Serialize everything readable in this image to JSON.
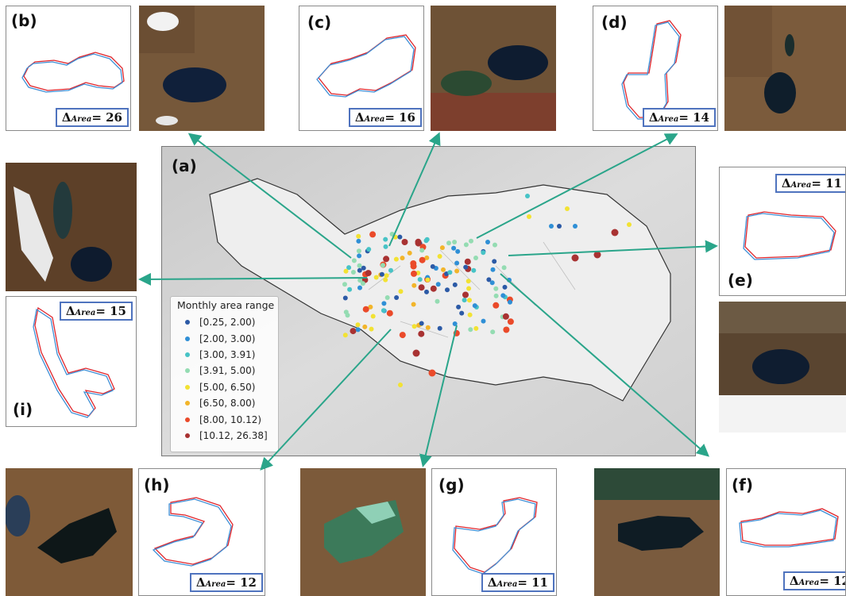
{
  "map_label": "(a)",
  "legend": {
    "title": "Monthly area range",
    "items": [
      {
        "label": "[0.25, 2.00)",
        "color": "#2c5aa6"
      },
      {
        "label": "[2.00, 3.00)",
        "color": "#2f8fd6"
      },
      {
        "label": "[3.00, 3.91)",
        "color": "#47c3c6"
      },
      {
        "label": "[3.91, 5.00)",
        "color": "#94dcb2"
      },
      {
        "label": "[5.00, 6.50)",
        "color": "#f2e233"
      },
      {
        "label": "[6.50, 8.00)",
        "color": "#f2b52a"
      },
      {
        "label": "[8.00, 10.12)",
        "color": "#ea4a2a"
      },
      {
        "label": "[10.12, 26.38]",
        "color": "#a83232"
      }
    ]
  },
  "panels": {
    "b": {
      "label": "(b)",
      "delta_prefix": "Δ",
      "delta_sub": "Area",
      "delta_value": "= 26"
    },
    "c": {
      "label": "(c)",
      "delta_prefix": "Δ",
      "delta_sub": "Area",
      "delta_value": "= 16"
    },
    "d": {
      "label": "(d)",
      "delta_prefix": "Δ",
      "delta_sub": "Area",
      "delta_value": "= 14"
    },
    "e": {
      "label": "(e)",
      "delta_prefix": "Δ",
      "delta_sub": "Area",
      "delta_value": "= 11"
    },
    "f": {
      "label": "(f)",
      "delta_prefix": "Δ",
      "delta_sub": "Area",
      "delta_value": "= 12"
    },
    "g": {
      "label": "(g)",
      "delta_prefix": "Δ",
      "delta_sub": "Area",
      "delta_value": "= 11"
    },
    "h": {
      "label": "(h)",
      "delta_prefix": "Δ",
      "delta_sub": "Area",
      "delta_value": "= 12"
    },
    "i": {
      "label": "(i)",
      "delta_prefix": "Δ",
      "delta_sub": "Area",
      "delta_value": "= 15"
    }
  },
  "colors": {
    "arrow": "#2aa58a",
    "outline_red": "#e0252b",
    "outline_blue": "#3f8fd6",
    "badge_border": "#4f73be"
  }
}
